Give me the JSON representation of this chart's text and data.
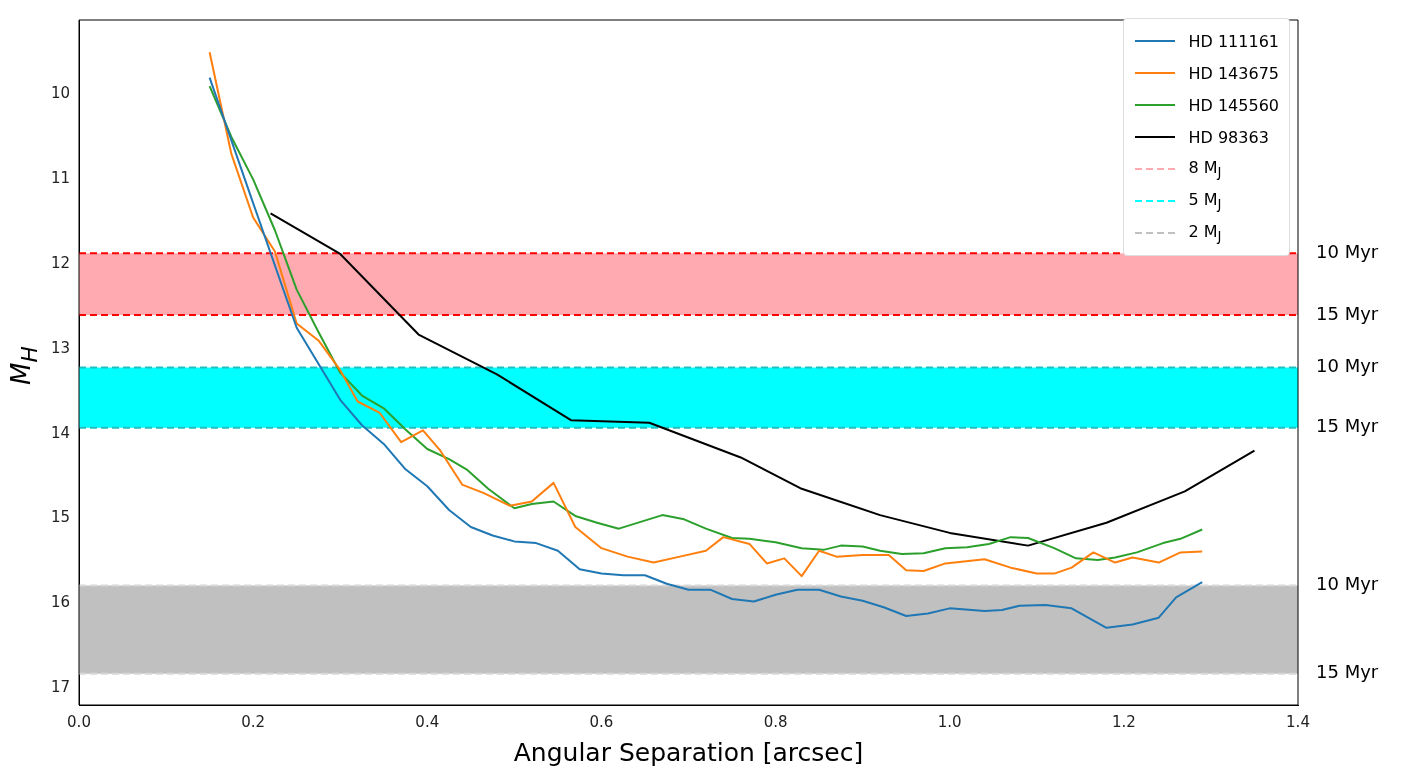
{
  "chart_data": {
    "type": "line",
    "xlabel": "Angular Separation [arcsec]",
    "ylabel": "M$_{H}$",
    "xlim": [
      0,
      1.4
    ],
    "xticks": [
      {
        "value": 0,
        "label": "0.0"
      },
      {
        "value": 0.2,
        "label": "0.2"
      },
      {
        "value": 0.4,
        "label": "0.4"
      },
      {
        "value": 0.6,
        "label": "0.6"
      },
      {
        "value": 0.8,
        "label": "0.8"
      },
      {
        "value": 1.0,
        "label": "1.0"
      },
      {
        "value": 1.2,
        "label": "1.2"
      },
      {
        "value": 1.4,
        "label": "1.4"
      }
    ],
    "ylim": [
      17.2,
      9.12
    ],
    "yticks": [
      10,
      11,
      12,
      13,
      14,
      15,
      16,
      17
    ],
    "grid": false,
    "legend": "top right",
    "marker": "none",
    "line_style": "solid",
    "series": [
      {
        "name": "HD 111161",
        "color": "#1f77b4",
        "x": [
          0.15,
          0.2,
          0.25,
          0.3,
          0.325,
          0.35,
          0.375,
          0.4,
          0.425,
          0.45,
          0.475,
          0.5,
          0.525,
          0.55,
          0.575,
          0.6,
          0.625,
          0.65,
          0.675,
          0.7,
          0.725,
          0.75,
          0.775,
          0.8,
          0.825,
          0.85,
          0.875,
          0.9,
          0.925,
          0.95,
          0.975,
          1.0,
          1.04,
          1.06,
          1.08,
          1.11,
          1.14,
          1.18,
          1.21,
          1.24,
          1.26,
          1.29
        ],
        "values": [
          9.8,
          11.28,
          12.75,
          13.6,
          13.9,
          14.12,
          14.42,
          14.62,
          14.9,
          15.1,
          15.2,
          15.27,
          15.29,
          15.38,
          15.6,
          15.65,
          15.67,
          15.67,
          15.77,
          15.84,
          15.84,
          15.95,
          15.98,
          15.9,
          15.84,
          15.84,
          15.92,
          15.97,
          16.05,
          16.15,
          16.12,
          16.06,
          16.09,
          16.08,
          16.03,
          16.02,
          16.06,
          16.29,
          16.25,
          16.17,
          15.93,
          15.75
        ]
      },
      {
        "name": "HD 143675",
        "color": "#ff7f0e",
        "x": [
          0.15,
          0.175,
          0.2,
          0.225,
          0.25,
          0.275,
          0.3,
          0.32,
          0.345,
          0.37,
          0.395,
          0.415,
          0.44,
          0.465,
          0.495,
          0.52,
          0.545,
          0.57,
          0.6,
          0.63,
          0.66,
          0.69,
          0.72,
          0.74,
          0.77,
          0.79,
          0.81,
          0.83,
          0.85,
          0.87,
          0.9,
          0.93,
          0.95,
          0.97,
          0.995,
          1.04,
          1.07,
          1.1,
          1.12,
          1.14,
          1.165,
          1.19,
          1.21,
          1.24,
          1.265,
          1.29
        ],
        "values": [
          9.5,
          10.7,
          11.45,
          11.85,
          12.7,
          12.9,
          13.25,
          13.62,
          13.75,
          14.1,
          13.96,
          14.2,
          14.6,
          14.7,
          14.85,
          14.8,
          14.58,
          15.1,
          15.35,
          15.45,
          15.52,
          15.45,
          15.38,
          15.22,
          15.3,
          15.53,
          15.47,
          15.68,
          15.38,
          15.45,
          15.43,
          15.43,
          15.61,
          15.62,
          15.53,
          15.48,
          15.58,
          15.65,
          15.65,
          15.58,
          15.4,
          15.52,
          15.46,
          15.52,
          15.4,
          15.39
        ]
      },
      {
        "name": "HD 145560",
        "color": "#2ca02c",
        "x": [
          0.15,
          0.175,
          0.2,
          0.225,
          0.25,
          0.275,
          0.3,
          0.325,
          0.35,
          0.375,
          0.4,
          0.425,
          0.445,
          0.47,
          0.5,
          0.52,
          0.545,
          0.57,
          0.595,
          0.62,
          0.645,
          0.67,
          0.695,
          0.72,
          0.75,
          0.77,
          0.8,
          0.83,
          0.855,
          0.875,
          0.9,
          0.92,
          0.945,
          0.97,
          0.995,
          1.02,
          1.045,
          1.07,
          1.09,
          1.12,
          1.145,
          1.17,
          1.19,
          1.215,
          1.245,
          1.265,
          1.29
        ],
        "values": [
          9.9,
          10.5,
          11.0,
          11.6,
          12.3,
          12.8,
          13.28,
          13.55,
          13.7,
          13.95,
          14.18,
          14.3,
          14.42,
          14.65,
          14.88,
          14.83,
          14.8,
          14.97,
          15.05,
          15.12,
          15.04,
          14.96,
          15.01,
          15.12,
          15.23,
          15.24,
          15.28,
          15.35,
          15.37,
          15.32,
          15.33,
          15.38,
          15.42,
          15.41,
          15.35,
          15.34,
          15.3,
          15.22,
          15.23,
          15.35,
          15.47,
          15.49,
          15.46,
          15.4,
          15.29,
          15.24,
          15.13
        ]
      },
      {
        "name": "HD 98363",
        "color": "#000000",
        "x": [
          0.22,
          0.3,
          0.39,
          0.48,
          0.565,
          0.655,
          0.76,
          0.83,
          0.92,
          1.0,
          1.09,
          1.18,
          1.27,
          1.35
        ],
        "values": [
          11.4,
          11.88,
          12.83,
          13.3,
          13.84,
          13.87,
          14.28,
          14.65,
          14.96,
          15.17,
          15.32,
          15.05,
          14.68,
          14.2
        ]
      }
    ],
    "bands": [
      {
        "axis": "y",
        "from": 11.87,
        "to": 12.6,
        "label": "8 M$_{J}$",
        "color": "#ffaab0"
      },
      {
        "axis": "y",
        "from": 13.22,
        "to": 13.93,
        "label": "5 M$_{J}$",
        "color": "#00ffff"
      },
      {
        "axis": "y",
        "from": 15.79,
        "to": 16.83,
        "label": "2 M$_{J}$",
        "color": "#c0c0c0"
      }
    ],
    "ref_lines": [
      {
        "axis": "y",
        "value": 11.87,
        "label": "10 Myr",
        "color": "#ff0000",
        "line_style": "dashed"
      },
      {
        "axis": "y",
        "value": 12.6,
        "label": "15 Myr",
        "color": "#ff0000",
        "line_style": "dashed"
      },
      {
        "axis": "y",
        "value": 13.22,
        "label": "10 Myr",
        "color": "#20c0c0",
        "line_style": "dashed"
      },
      {
        "axis": "y",
        "value": 13.93,
        "label": "15 Myr",
        "color": "#20c0c0",
        "line_style": "dashed"
      },
      {
        "axis": "y",
        "value": 15.79,
        "label": "10 Myr",
        "color": "#d8d8d8",
        "line_style": "dashed"
      },
      {
        "axis": "y",
        "value": 16.83,
        "label": "15 Myr",
        "color": "#d8d8d8",
        "line_style": "dashed"
      }
    ]
  }
}
